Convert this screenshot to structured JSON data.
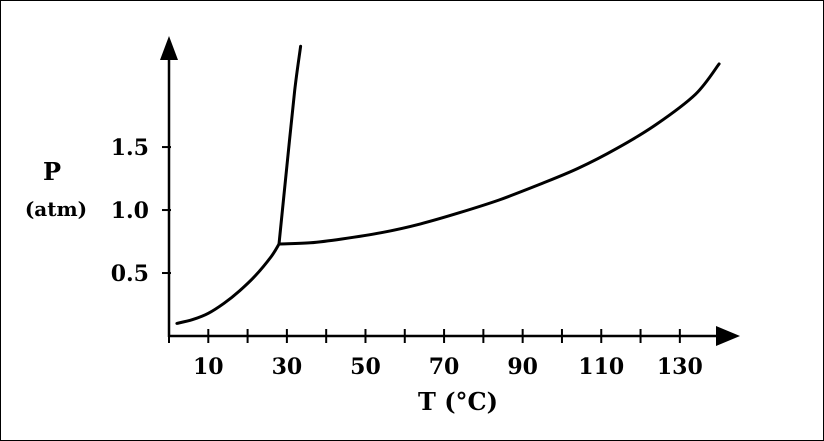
{
  "chart_data": {
    "type": "line",
    "xlabel": "T (°C)",
    "ylabel": "P",
    "ylabel_unit": "(atm)",
    "x_ticks": [
      10,
      30,
      50,
      70,
      90,
      110,
      130
    ],
    "y_ticks": [
      "0.5",
      "1.0",
      "1.5"
    ],
    "xlim": [
      0,
      142
    ],
    "ylim": [
      0,
      2.35
    ],
    "grid": false,
    "series": [
      {
        "x": [
          2,
          6,
          10,
          14,
          18,
          22,
          26,
          28
        ],
        "y": [
          0.1,
          0.13,
          0.18,
          0.26,
          0.36,
          0.48,
          0.63,
          0.73
        ]
      },
      {
        "x": [
          28,
          30,
          32,
          33.5
        ],
        "y": [
          0.73,
          1.35,
          1.95,
          2.3
        ]
      },
      {
        "x": [
          28,
          36,
          44,
          54,
          64,
          74,
          84,
          94,
          104,
          114,
          124,
          134,
          140
        ],
        "y": [
          0.73,
          0.74,
          0.77,
          0.82,
          0.89,
          0.98,
          1.08,
          1.2,
          1.33,
          1.49,
          1.68,
          1.92,
          2.16
        ]
      }
    ],
    "line_color": "#000000"
  }
}
